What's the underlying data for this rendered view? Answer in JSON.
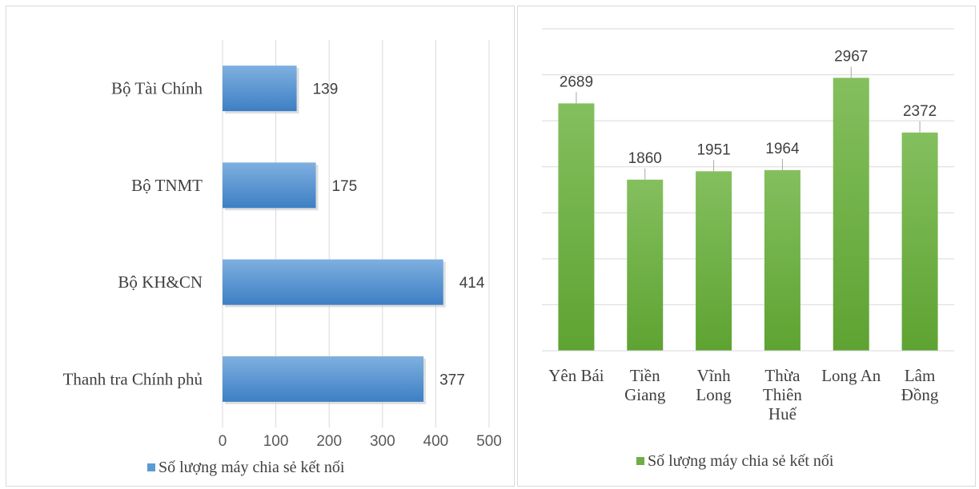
{
  "chart_data": [
    {
      "type": "bar",
      "orientation": "horizontal",
      "categories": [
        "Bộ Tài Chính",
        "Bộ TNMT",
        "Bộ KH&CN",
        "Thanh tra Chính phủ"
      ],
      "series": [
        {
          "name": "Số lượng máy chia sẻ kết nối",
          "values": [
            139,
            175,
            414,
            377
          ],
          "color": "#5b9bd5"
        }
      ],
      "xlim": [
        0,
        500
      ],
      "xticks": [
        "0",
        "100",
        "200",
        "300",
        "400",
        "500"
      ],
      "grid": true,
      "legend": "bottom"
    },
    {
      "type": "bar",
      "orientation": "vertical",
      "categories": [
        [
          "Yên Bái"
        ],
        [
          "Tiền",
          "Giang"
        ],
        [
          "Vĩnh",
          "Long"
        ],
        [
          "Thừa",
          "Thiên",
          "Huế"
        ],
        [
          "Long An"
        ],
        [
          "Lâm",
          "Đồng"
        ]
      ],
      "series": [
        {
          "name": "Số lượng máy chia sẻ kết nối",
          "values": [
            2689,
            1860,
            1951,
            1964,
            2967,
            2372
          ],
          "color": "#70ad47"
        }
      ],
      "ylim": [
        0,
        3500
      ],
      "grid": true,
      "legend": "bottom"
    }
  ]
}
